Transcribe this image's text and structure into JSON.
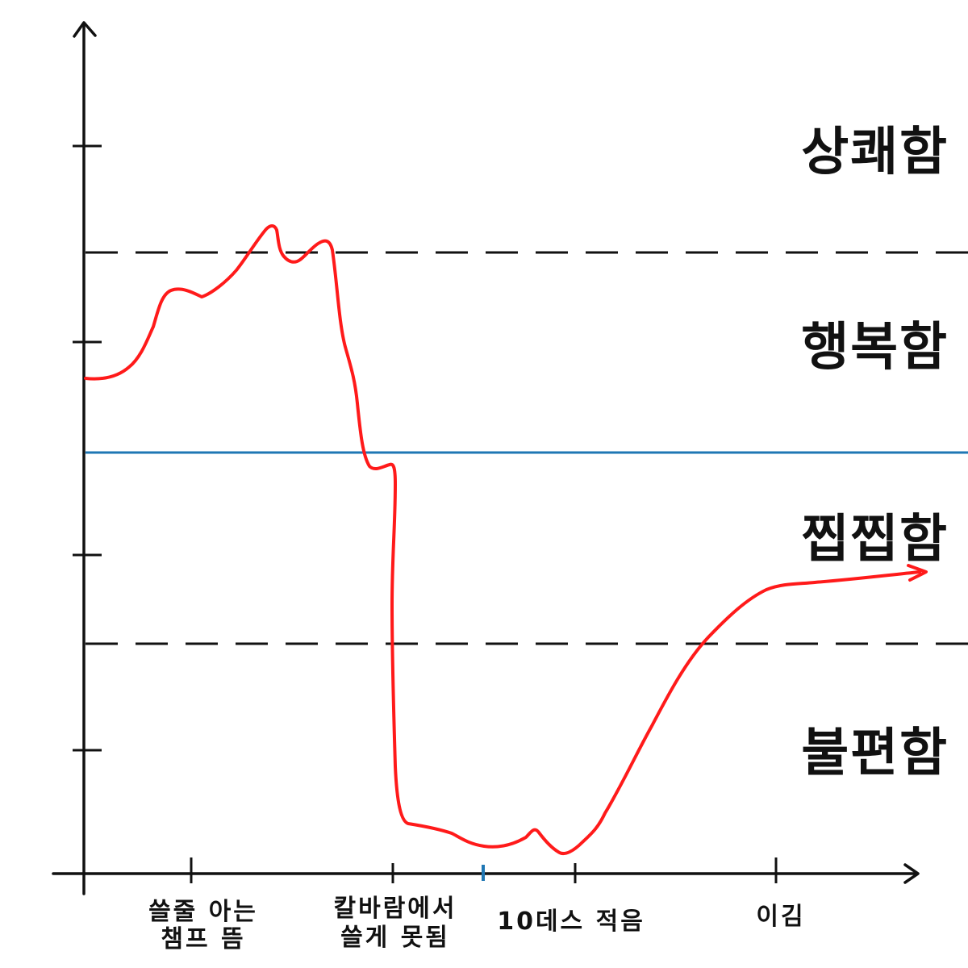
{
  "chart_data": {
    "type": "line",
    "title": "",
    "xlabel": "",
    "ylabel": "",
    "zones": [
      {
        "label": "상쾌함"
      },
      {
        "label": "행복함"
      },
      {
        "label": "찝찝함"
      },
      {
        "label": "불편함"
      }
    ],
    "x_ticks": [
      {
        "lines": [
          "쓸줄 아는",
          "챔프 뜸"
        ]
      },
      {
        "lines": [
          "칼바람에서",
          "쓸게 못됨"
        ]
      },
      {
        "lines": [
          "10데스 적음"
        ]
      },
      {
        "lines": [
          "이김"
        ]
      }
    ],
    "series": [
      {
        "color": "#ff1a1a"
      }
    ],
    "colors": {
      "curve": "#ff1a1a",
      "baseline": "#1f77b4",
      "axis": "#111111",
      "dashed": "#111111"
    }
  }
}
